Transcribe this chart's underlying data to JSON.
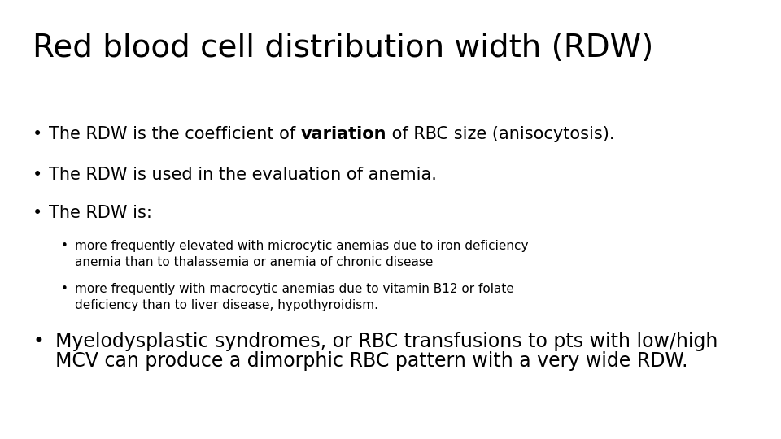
{
  "title": "Red blood cell distribution width (RDW)",
  "background_color": "#ffffff",
  "text_color": "#000000",
  "title_fontsize": 28,
  "body_fontsize": 15,
  "sub_fontsize": 11,
  "last_fontsize": 17,
  "bullet1_pre": "The RDW is the coefficient of ",
  "bullet1_bold": "variation",
  "bullet1_post": " of RBC size (anisocytosis).",
  "bullet2": "The RDW is used in the evaluation of anemia.",
  "bullet3": "The RDW is:",
  "sub1_line1": "more frequently elevated with microcytic anemias due to iron deficiency",
  "sub1_line2": "anemia than to thalassemia or anemia of chronic disease",
  "sub2_line1": "more frequently with macrocytic anemias due to vitamin B12 or folate",
  "sub2_line2": "deficiency than to liver disease, hypothyroidism.",
  "last_line1": "Myelodysplastic syndromes, or RBC transfusions to pts with low/high",
  "last_line2": "MCV can produce a dimorphic RBC pattern with a very wide RDW."
}
